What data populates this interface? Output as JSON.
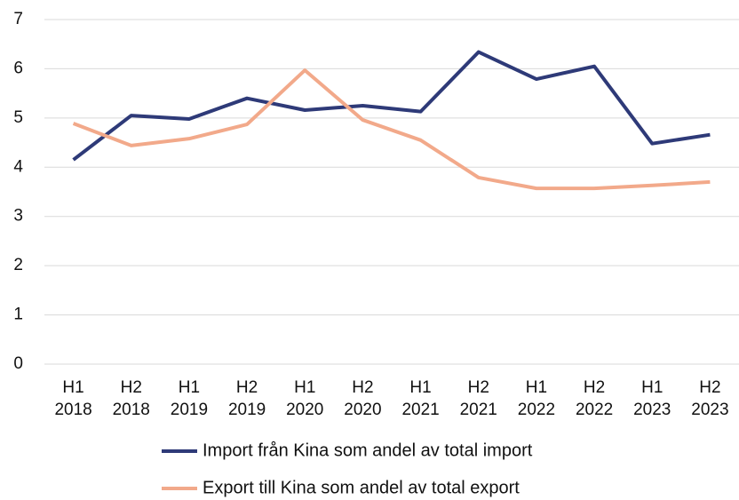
{
  "chart_data": {
    "type": "line",
    "categories": [
      "H1 2018",
      "H2 2018",
      "H1 2019",
      "H2 2019",
      "H1 2020",
      "H2 2020",
      "H1 2021",
      "H2 2021",
      "H1 2022",
      "H2 2022",
      "H1 2023",
      "H2 2023"
    ],
    "series": [
      {
        "name": "Import från Kina som andel av total import",
        "color": "#2e3a78",
        "values": [
          4.15,
          5.05,
          4.98,
          5.4,
          5.16,
          5.25,
          5.13,
          6.34,
          5.79,
          6.05,
          4.48,
          4.66
        ]
      },
      {
        "name": "Export till Kina som andel av total export",
        "color": "#f2a98a",
        "values": [
          4.89,
          4.44,
          4.58,
          4.87,
          5.97,
          4.96,
          4.55,
          3.79,
          3.57,
          3.57,
          3.63,
          3.7
        ]
      }
    ],
    "ylim": [
      0,
      7
    ],
    "yticks": [
      0,
      1,
      2,
      3,
      4,
      5,
      6,
      7
    ],
    "grid": true,
    "legend": "bottom"
  }
}
